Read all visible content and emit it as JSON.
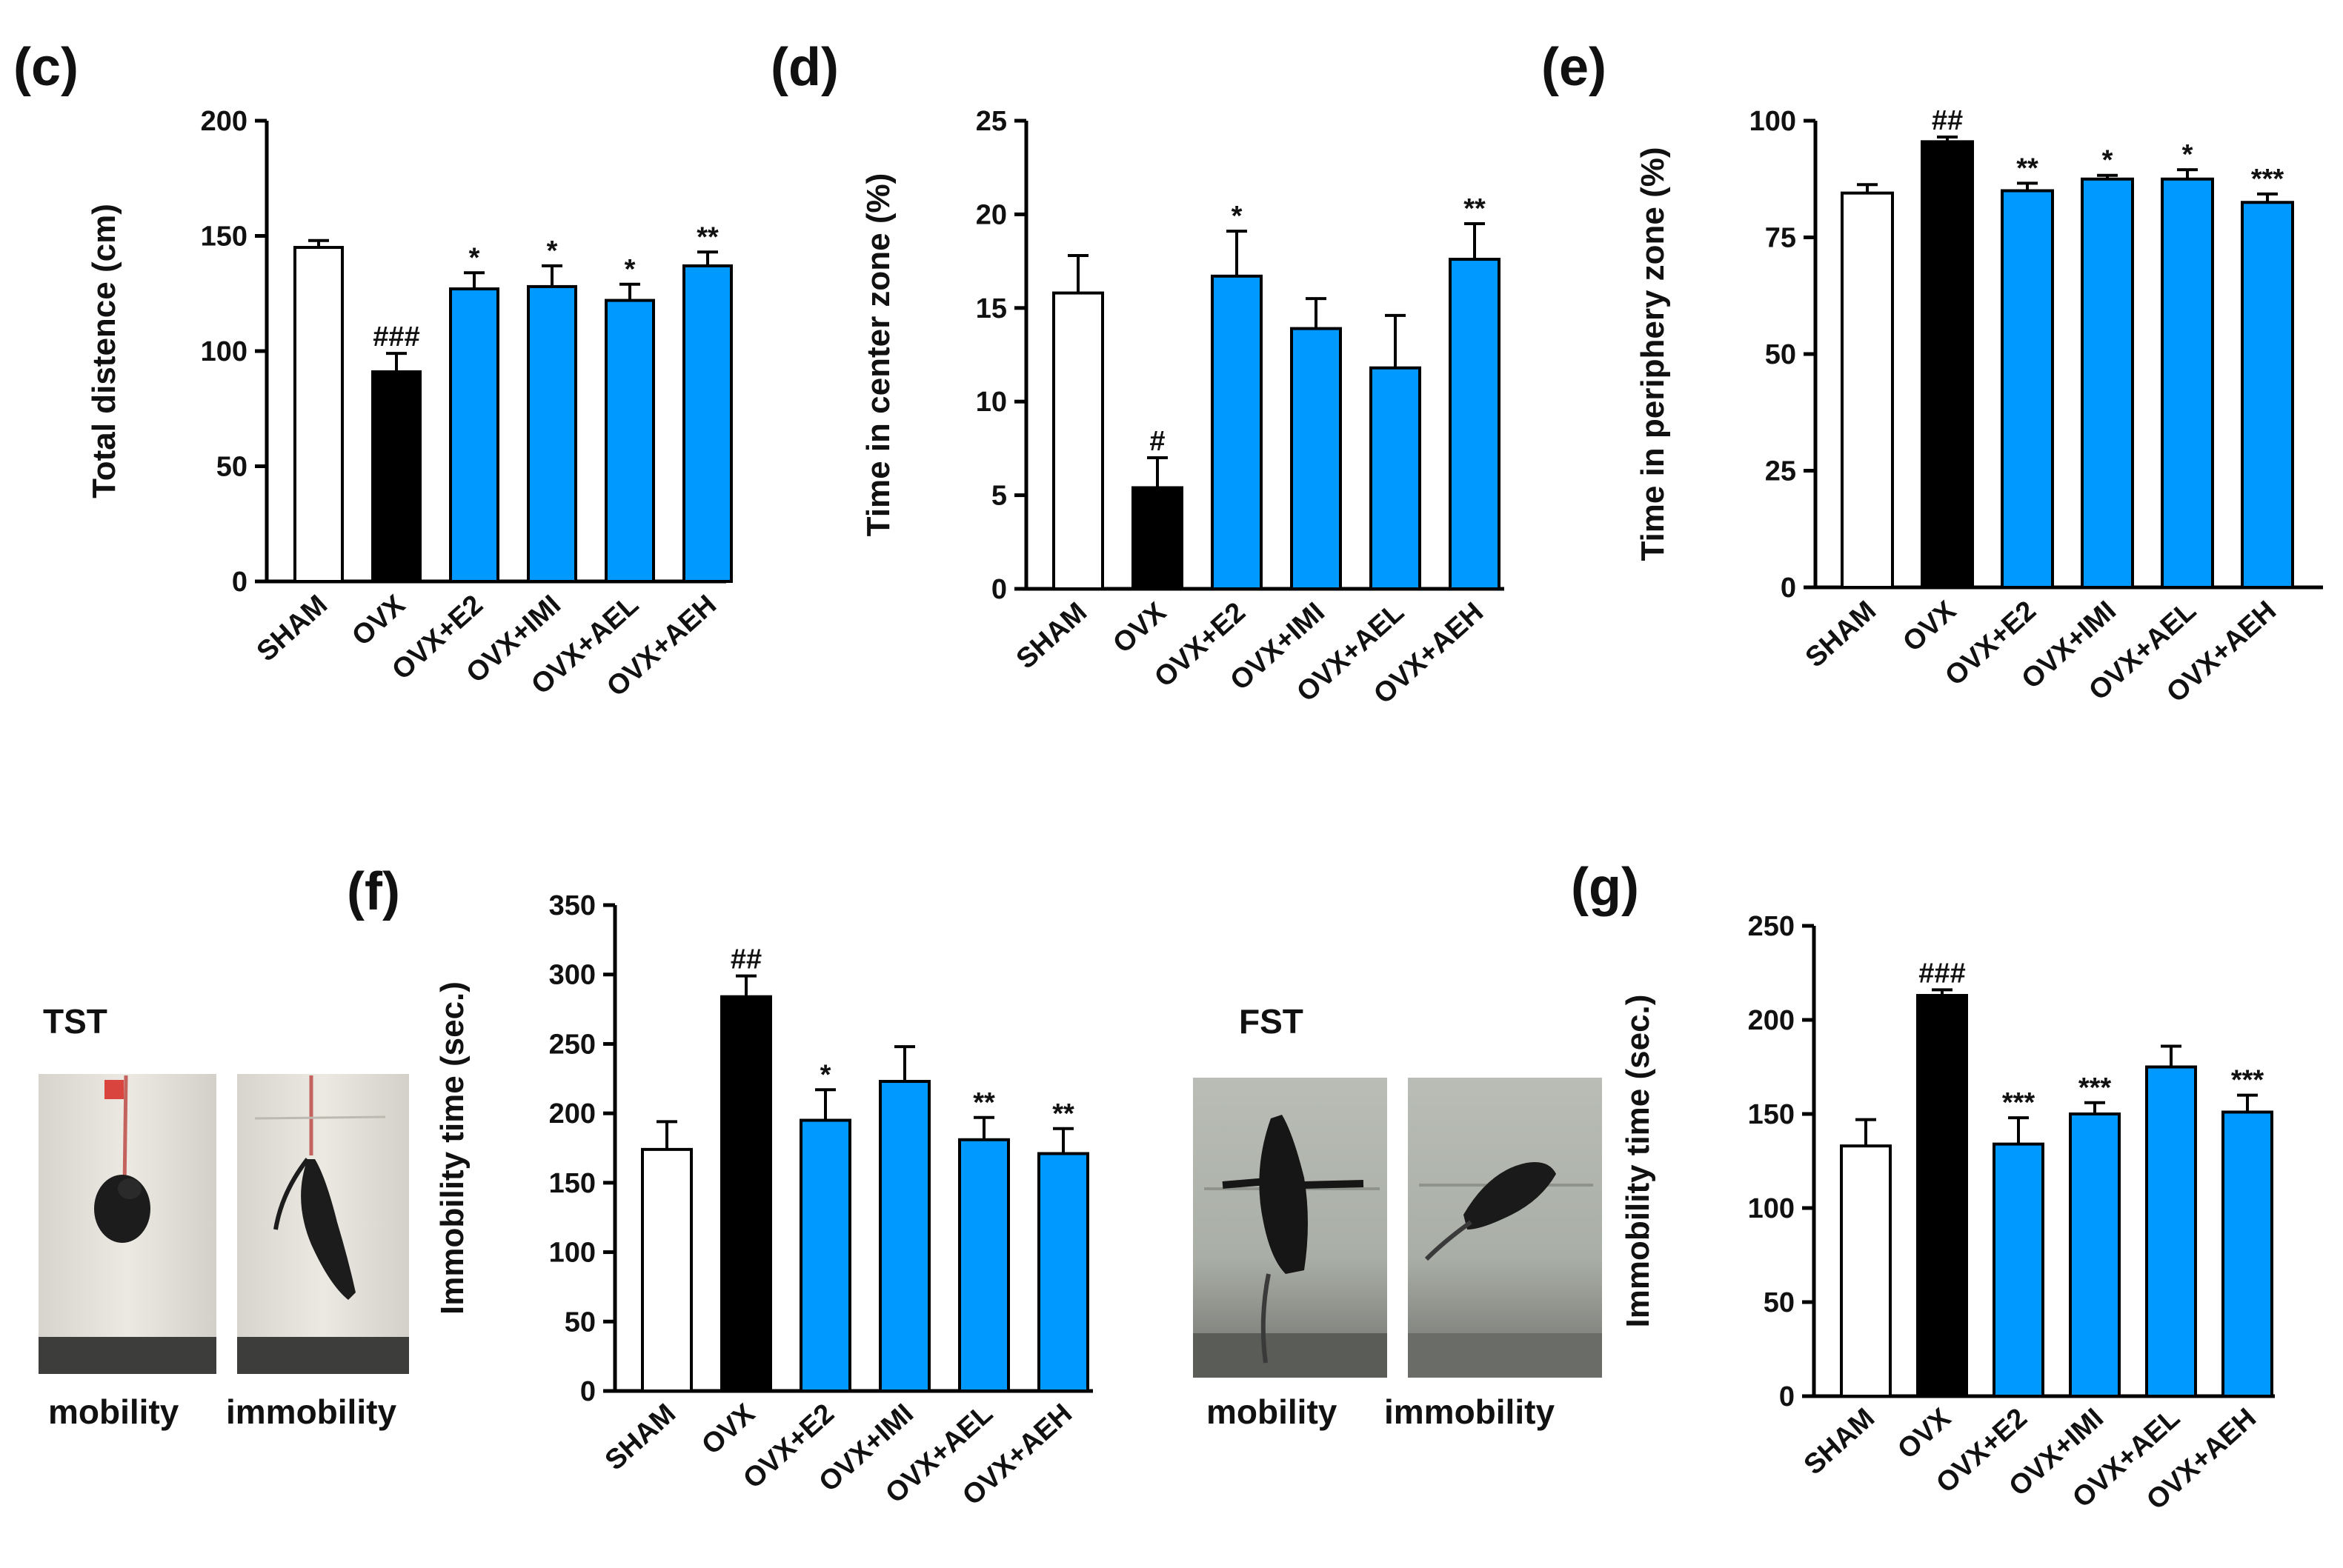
{
  "colors": {
    "sham": "#ffffff",
    "ovx": "#000000",
    "treatment": "#0099ff",
    "axis": "#000000"
  },
  "chart_data": [
    {
      "id": "c",
      "panel_label": "(c)",
      "type": "bar",
      "ylabel": "Total distence (cm)",
      "ylim": [
        0,
        200
      ],
      "yticks": [
        0,
        50,
        100,
        150,
        200
      ],
      "categories": [
        "SHAM",
        "OVX",
        "OVX+E2",
        "OVX+IMI",
        "OVX+AEL",
        "OVX+AEH"
      ],
      "values": [
        145,
        91,
        127,
        128,
        122,
        137
      ],
      "errors": [
        3,
        8,
        7,
        9,
        7,
        6
      ],
      "annotations": [
        "",
        "###",
        "*",
        "*",
        "*",
        "**"
      ]
    },
    {
      "id": "d",
      "panel_label": "(d)",
      "type": "bar",
      "ylabel": "Time in center zone (%)",
      "ylim": [
        0,
        25
      ],
      "yticks": [
        0,
        5,
        10,
        15,
        20,
        25
      ],
      "categories": [
        "SHAM",
        "OVX",
        "OVX+E2",
        "OVX+IMI",
        "OVX+AEL",
        "OVX+AEH"
      ],
      "values": [
        15.8,
        5.4,
        16.7,
        13.9,
        11.8,
        17.6
      ],
      "errors": [
        2.0,
        1.6,
        2.4,
        1.6,
        2.8,
        1.9
      ],
      "annotations": [
        "",
        "#",
        "*",
        "",
        "",
        "**"
      ]
    },
    {
      "id": "e",
      "panel_label": "(e)",
      "type": "bar",
      "ylabel": "Time in periphery zone (%)",
      "ylim": [
        0,
        100
      ],
      "yticks": [
        0,
        25,
        50,
        75,
        100
      ],
      "categories": [
        "SHAM",
        "OVX",
        "OVX+E2",
        "OVX+IMI",
        "OVX+AEL",
        "OVX+AEH"
      ],
      "values": [
        84.5,
        95.5,
        85,
        87.5,
        87.5,
        82.5
      ],
      "errors": [
        1.8,
        1.0,
        1.6,
        0.8,
        2.0,
        1.8
      ],
      "annotations": [
        "",
        "##",
        "**",
        "*",
        "*",
        "***"
      ]
    },
    {
      "id": "f",
      "panel_label": "(f)",
      "type": "bar",
      "ylabel": "Immobility time (sec.)",
      "ylim": [
        0,
        350
      ],
      "yticks": [
        0,
        50,
        100,
        150,
        200,
        250,
        300,
        350
      ],
      "categories": [
        "SHAM",
        "OVX",
        "OVX+E2",
        "OVX+IMI",
        "OVX+AEL",
        "OVX+AEH"
      ],
      "values": [
        174,
        284,
        195,
        223,
        181,
        171
      ],
      "errors": [
        20,
        15,
        22,
        25,
        16,
        18
      ],
      "annotations": [
        "",
        "##",
        "*",
        "",
        "**",
        "**"
      ]
    },
    {
      "id": "g",
      "panel_label": "(g)",
      "type": "bar",
      "ylabel": "Immobility time (sec.)",
      "ylim": [
        0,
        250
      ],
      "yticks": [
        0,
        50,
        100,
        150,
        200,
        250
      ],
      "categories": [
        "SHAM",
        "OVX",
        "OVX+E2",
        "OVX+IMI",
        "OVX+AEL",
        "OVX+AEH"
      ],
      "values": [
        133,
        213,
        134,
        150,
        175,
        151
      ],
      "errors": [
        14,
        3,
        14,
        6,
        11,
        9
      ],
      "annotations": [
        "",
        "###",
        "***",
        "***",
        "",
        "***"
      ]
    }
  ],
  "photos": {
    "tst": {
      "title": "TST",
      "labels": [
        "mobility",
        "immobility"
      ]
    },
    "fst": {
      "title": "FST",
      "labels": [
        "mobility",
        "immobility"
      ]
    }
  }
}
